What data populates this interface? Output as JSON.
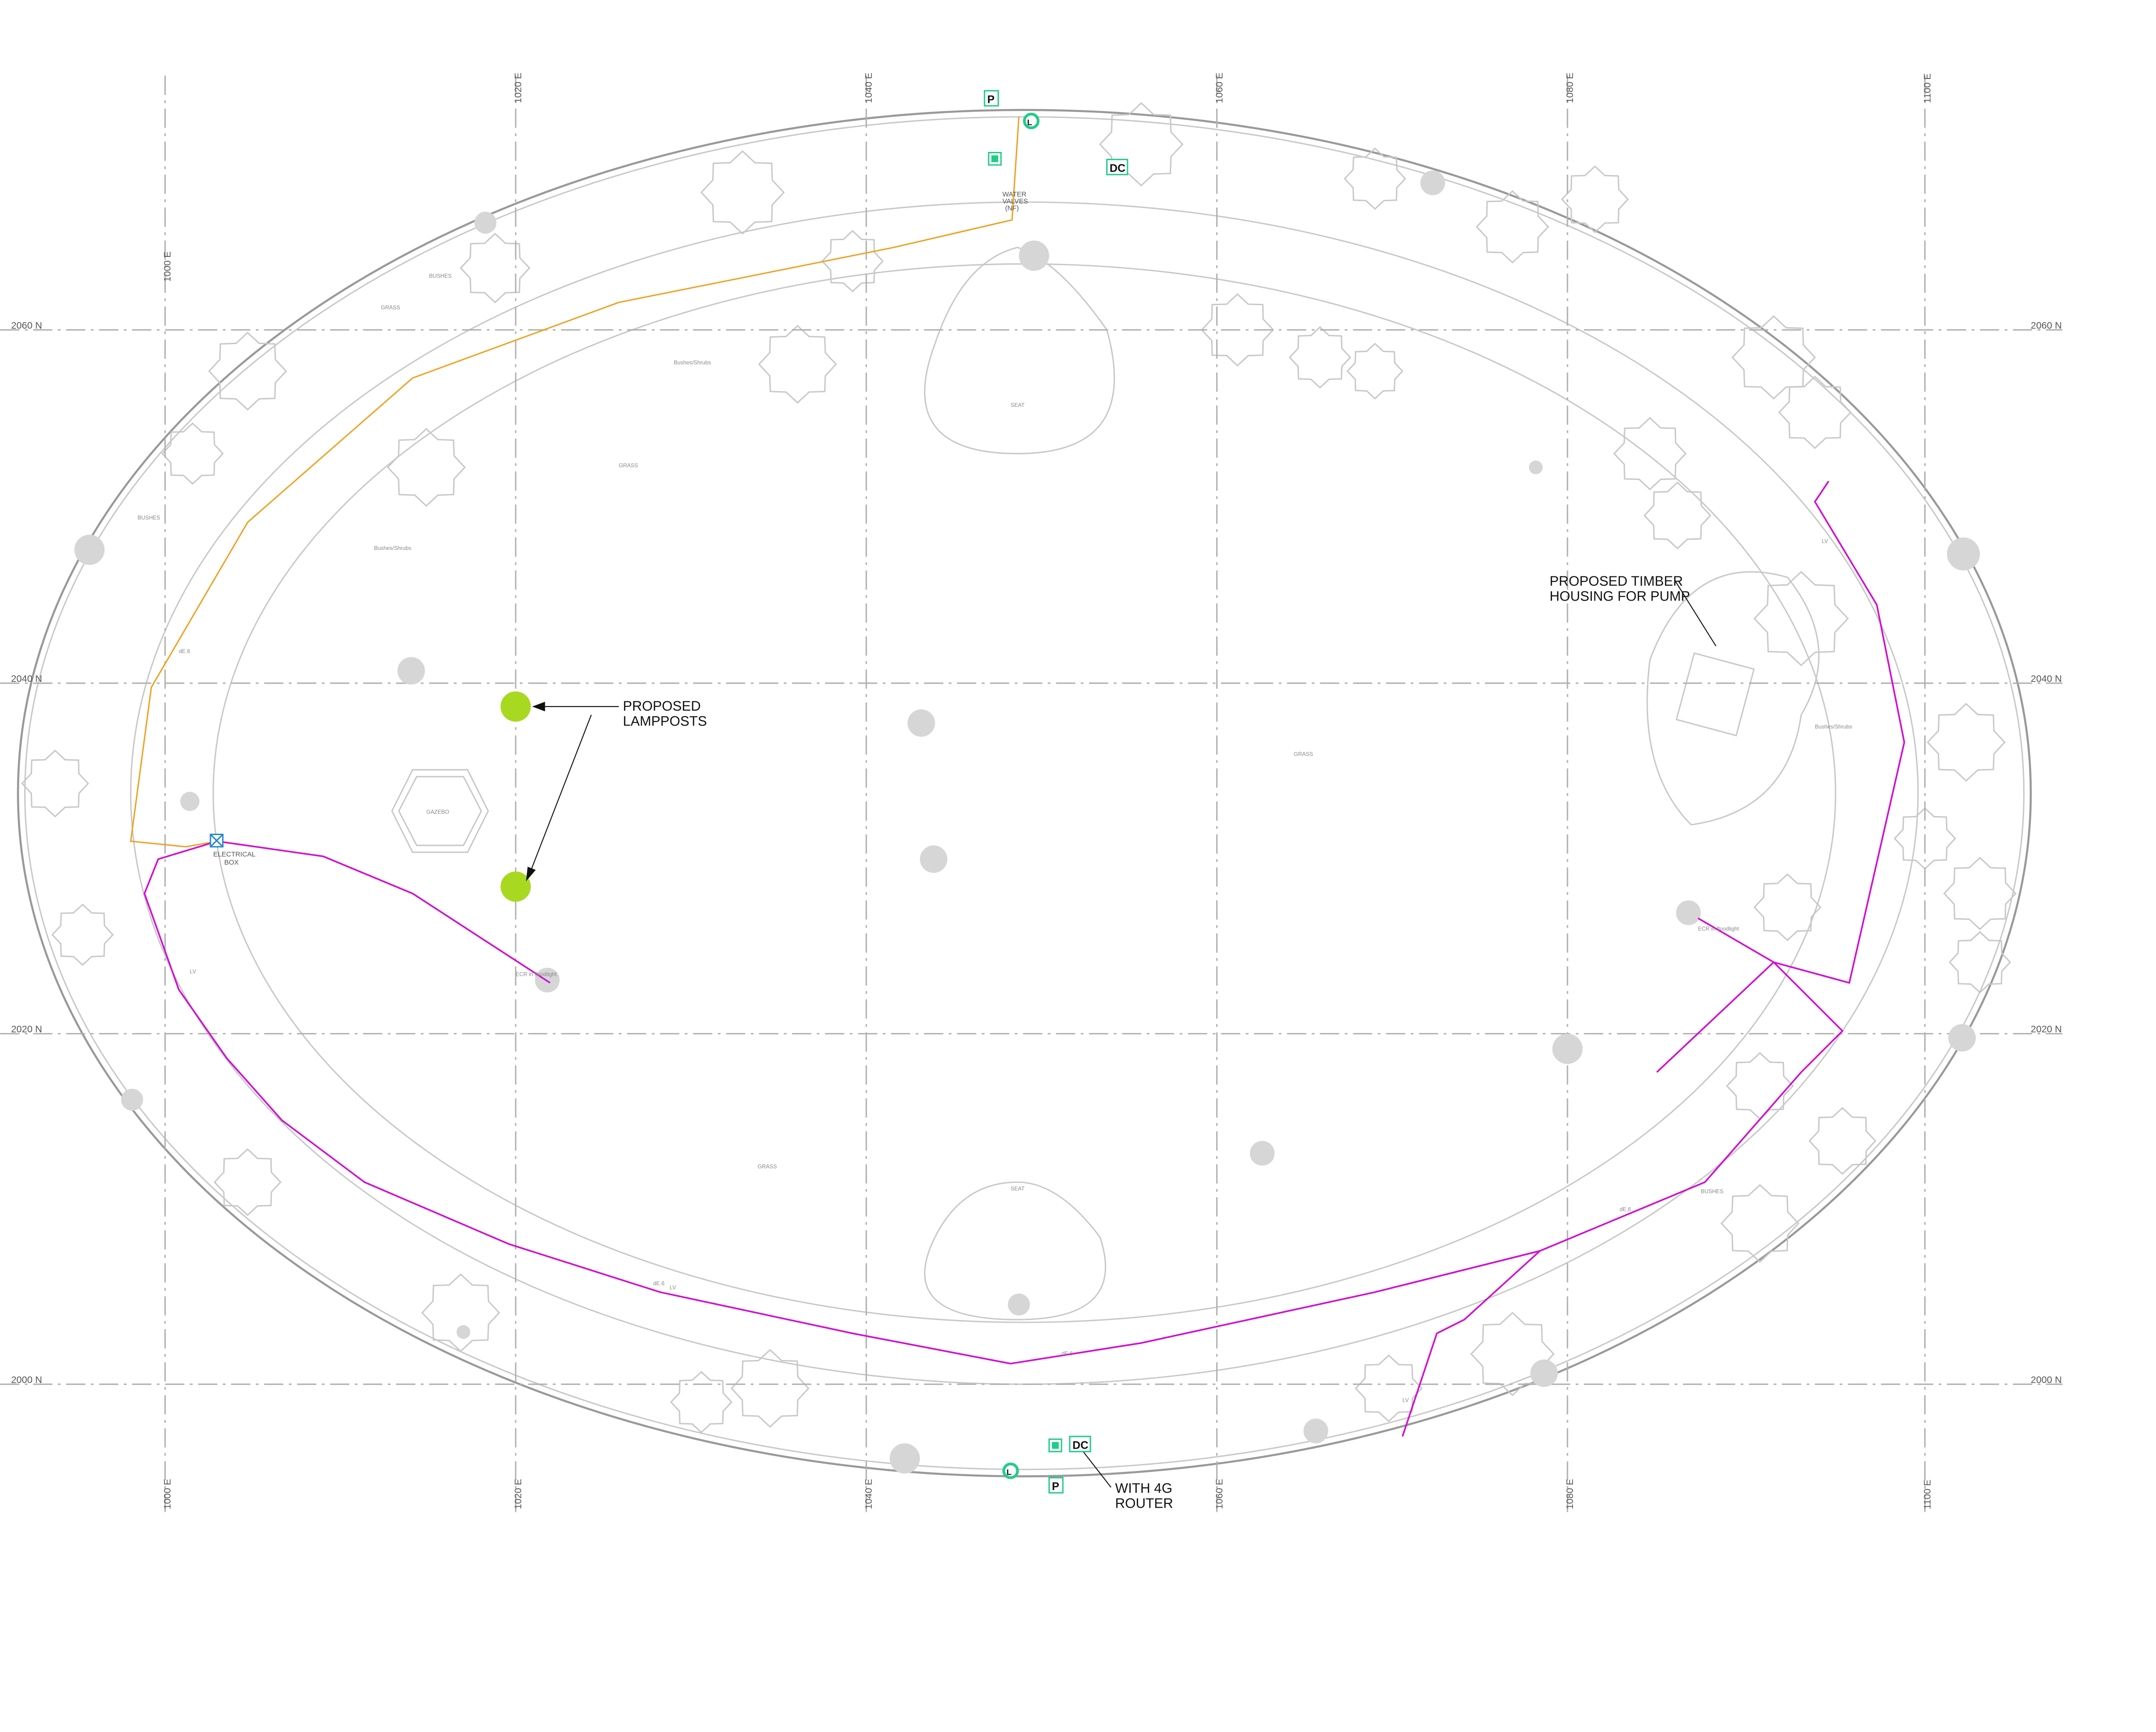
{
  "grid": {
    "northings": [
      "2060 N",
      "2040 N",
      "2020 N",
      "2000 N"
    ],
    "eastings": [
      "1000 E",
      "1020 E",
      "1040 E",
      "1060 E",
      "1080 E",
      "1100 E"
    ]
  },
  "annotations": {
    "lampposts": [
      "PROPOSED",
      "LAMPPOSTS"
    ],
    "pump_housing": [
      "PROPOSED TIMBER",
      "HOUSING FOR PUMP"
    ],
    "router": [
      "WITH 4G",
      "ROUTER"
    ],
    "electrical_box": [
      "ELECTRICAL",
      "BOX"
    ],
    "water_valves": [
      "WATER",
      "VALVES",
      "(NF)"
    ],
    "gazebo": "GAZEBO"
  },
  "markers": {
    "p": "P",
    "dc": "DC",
    "l": "L"
  },
  "labels": {
    "grass": "GRASS",
    "bushes": "BUSHES",
    "shrubs": "Bushes/Shrubs",
    "seat": "SEAT",
    "lv": "LV",
    "cable": "dE.6",
    "floodlight": "ECR in floodlight"
  }
}
